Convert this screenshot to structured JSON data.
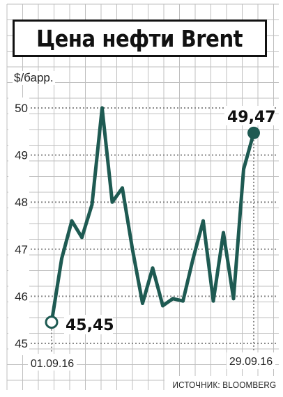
{
  "title": "Цена нефти Brent",
  "source": "ИСТОЧНИК: BLOOMBERG",
  "colors": {
    "line": "#1e5a52",
    "grid": "#bfbfbf",
    "dotted": "#8a8a8a",
    "text": "#222222",
    "background": "#ffffff"
  },
  "chart_data": {
    "type": "line",
    "ylabel": "$/барр.",
    "ylim": [
      45,
      50
    ],
    "yticks": [
      "45",
      "46",
      "47",
      "48",
      "49",
      "50"
    ],
    "grid": true,
    "x_start_label": "01.09.16",
    "x_end_label": "29.09.16",
    "start_value_label": "45,45",
    "end_value_label": "49,47",
    "series": [
      {
        "values": [
          45.45,
          46.8,
          47.6,
          47.25,
          47.95,
          50.0,
          48.0,
          48.3,
          47.0,
          45.85,
          46.6,
          45.8,
          45.95,
          45.9,
          46.8,
          47.6,
          45.9,
          47.35,
          45.95,
          48.7,
          49.47
        ]
      }
    ]
  }
}
